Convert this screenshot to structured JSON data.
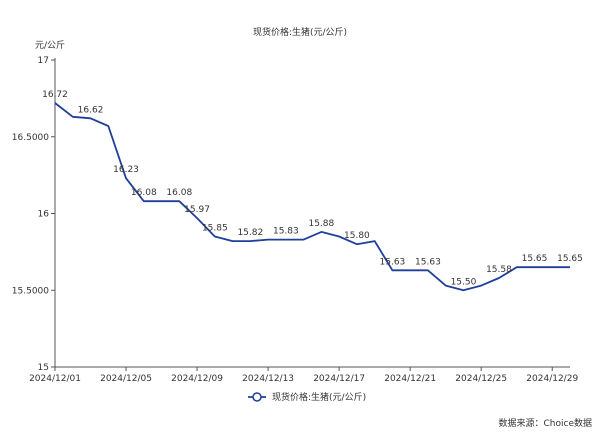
{
  "chart_data": {
    "type": "line",
    "title": "现货价格:生猪(元/公斤)",
    "ylabel": "元/公斤",
    "xlabel": "",
    "ylim": [
      15,
      17
    ],
    "yticks": [
      15,
      15.5,
      16,
      16.5,
      17
    ],
    "ytick_labels": [
      "15",
      "15.5000",
      "16",
      "16.5000",
      "17"
    ],
    "xticks": [
      "2024/12/01",
      "2024/12/05",
      "2024/12/09",
      "2024/12/13",
      "2024/12/17",
      "2024/12/21",
      "2024/12/25",
      "2024/12/29"
    ],
    "x": [
      "2024/12/01",
      "2024/12/02",
      "2024/12/03",
      "2024/12/04",
      "2024/12/05",
      "2024/12/06",
      "2024/12/07",
      "2024/12/08",
      "2024/12/09",
      "2024/12/10",
      "2024/12/11",
      "2024/12/12",
      "2024/12/13",
      "2024/12/14",
      "2024/12/15",
      "2024/12/16",
      "2024/12/17",
      "2024/12/18",
      "2024/12/19",
      "2024/12/20",
      "2024/12/21",
      "2024/12/22",
      "2024/12/23",
      "2024/12/24",
      "2024/12/25",
      "2024/12/26",
      "2024/12/27",
      "2024/12/28",
      "2024/12/29",
      "2024/12/30"
    ],
    "series": [
      {
        "name": "现货价格:生猪(元/公斤)",
        "color": "#1f3f99",
        "values": [
          16.72,
          16.63,
          16.62,
          16.57,
          16.23,
          16.08,
          16.08,
          16.08,
          15.97,
          15.85,
          15.82,
          15.82,
          15.83,
          15.83,
          15.83,
          15.88,
          15.85,
          15.8,
          15.82,
          15.63,
          15.63,
          15.63,
          15.53,
          15.5,
          15.53,
          15.58,
          15.65,
          15.65,
          15.65,
          15.65
        ]
      }
    ],
    "data_labels": [
      {
        "x": "2024/12/01",
        "text": "16.72"
      },
      {
        "x": "2024/12/03",
        "text": "16.62"
      },
      {
        "x": "2024/12/05",
        "text": "16.23"
      },
      {
        "x": "2024/12/06",
        "text": "16.08"
      },
      {
        "x": "2024/12/08",
        "text": "16.08"
      },
      {
        "x": "2024/12/09",
        "text": "15.97"
      },
      {
        "x": "2024/12/10",
        "text": "15.85"
      },
      {
        "x": "2024/12/12",
        "text": "15.82"
      },
      {
        "x": "2024/12/14",
        "text": "15.83"
      },
      {
        "x": "2024/12/16",
        "text": "15.88"
      },
      {
        "x": "2024/12/18",
        "text": "15.80"
      },
      {
        "x": "2024/12/20",
        "text": "15.63"
      },
      {
        "x": "2024/12/22",
        "text": "15.63"
      },
      {
        "x": "2024/12/24",
        "text": "15.50"
      },
      {
        "x": "2024/12/26",
        "text": "15.58"
      },
      {
        "x": "2024/12/28",
        "text": "15.65"
      },
      {
        "x": "2024/12/30",
        "text": "15.65"
      }
    ],
    "grid": false,
    "legend_position": "bottom-center",
    "line_color": "#1f3f99",
    "axis_color": "#555555"
  },
  "source_note": "数据来源：Choice数据"
}
